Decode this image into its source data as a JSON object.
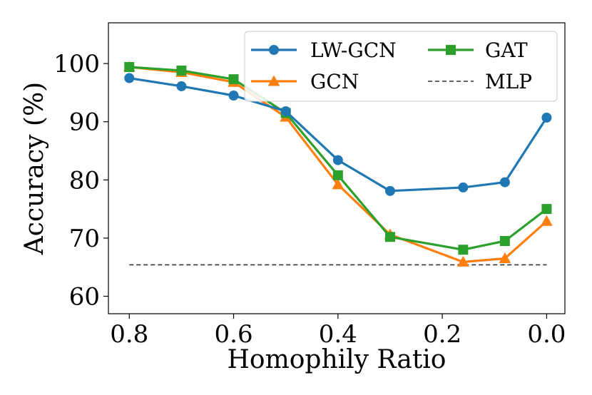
{
  "chart_data": {
    "type": "line",
    "xlabel": "Homophily Ratio",
    "ylabel": "Accuracy (%)",
    "xlim": [
      0.84,
      -0.035
    ],
    "ylim": [
      57,
      107
    ],
    "x_reversed": true,
    "x_ticks": [
      0.8,
      0.6,
      0.4,
      0.2,
      0.0
    ],
    "x_tick_labels": [
      "0.8",
      "0.6",
      "0.4",
      "0.2",
      "0.0"
    ],
    "y_ticks": [
      60,
      70,
      80,
      90,
      100
    ],
    "y_tick_labels": [
      "60",
      "70",
      "80",
      "90",
      "100"
    ],
    "grid": false,
    "legend_position": "top-right",
    "x": [
      0.8,
      0.7,
      0.6,
      0.5,
      0.4,
      0.3,
      0.16,
      0.08,
      0.0
    ],
    "series": [
      {
        "name": "LW-GCN",
        "color": "#1f77b4",
        "marker": "circle",
        "style": "solid",
        "values": [
          97.5,
          96.1,
          94.5,
          91.8,
          83.4,
          78.1,
          78.7,
          79.6,
          90.7
        ]
      },
      {
        "name": "GCN",
        "color": "#ff7f0e",
        "marker": "triangle",
        "style": "solid",
        "values": [
          99.4,
          98.5,
          96.8,
          90.8,
          79.2,
          70.6,
          65.9,
          66.5,
          72.9
        ]
      },
      {
        "name": "GAT",
        "color": "#2ca02c",
        "marker": "square",
        "style": "solid",
        "values": [
          99.4,
          98.8,
          97.3,
          91.5,
          80.8,
          70.2,
          68.0,
          69.5,
          75.0
        ]
      },
      {
        "name": "MLP",
        "color": "#333333",
        "marker": "none",
        "style": "dashed",
        "values": [
          65.4,
          65.4,
          65.4,
          65.4,
          65.4,
          65.4,
          65.4,
          65.4,
          65.4
        ]
      }
    ]
  }
}
